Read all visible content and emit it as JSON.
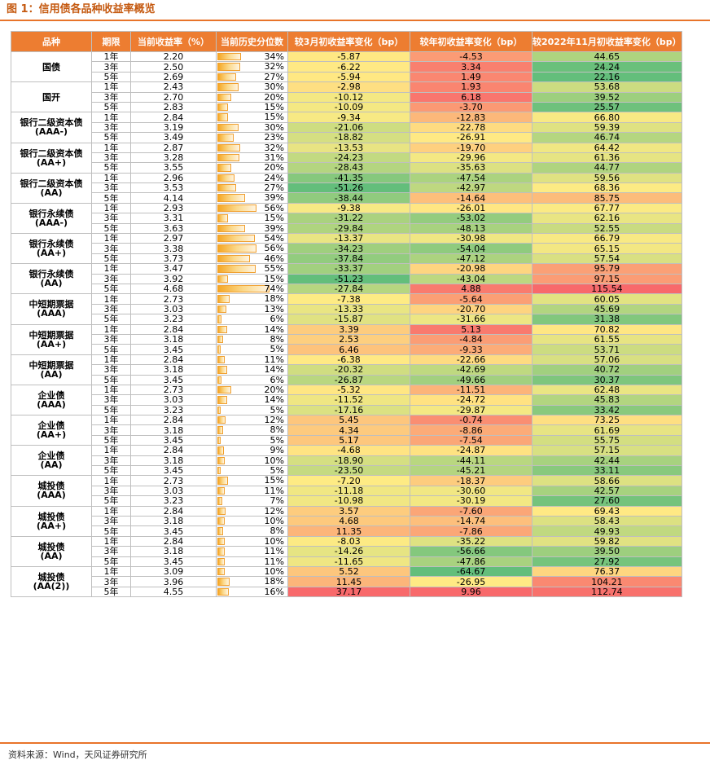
{
  "title": "图 1：信用债各品种收益率概览",
  "source": "资料来源：Wind，天风证券研究所",
  "chart_data": {
    "type": "table",
    "columns": [
      "品种",
      "期限",
      "当前收益率（%）",
      "当前历史分位数",
      "较3月初收益率变化（bp）",
      "较年初收益率变化（bp）",
      "较2022年11月初收益率变化（bp）"
    ],
    "periods": [
      "1年",
      "3年",
      "5年"
    ],
    "groups": [
      {
        "name": [
          "国债"
        ],
        "rows": [
          [
            "2.20",
            "34%",
            "-5.87",
            "-4.53",
            "44.65"
          ],
          [
            "2.50",
            "32%",
            "-6.22",
            "3.34",
            "24.24"
          ],
          [
            "2.69",
            "27%",
            "-5.94",
            "1.49",
            "22.16"
          ]
        ]
      },
      {
        "name": [
          "国开"
        ],
        "rows": [
          [
            "2.43",
            "30%",
            "-2.98",
            "1.93",
            "53.68"
          ],
          [
            "2.70",
            "20%",
            "-10.12",
            "6.18",
            "39.52"
          ],
          [
            "2.83",
            "15%",
            "-10.09",
            "-3.70",
            "25.57"
          ]
        ]
      },
      {
        "name": [
          "银行二级资本债",
          "(AAA-)"
        ],
        "rows": [
          [
            "2.84",
            "15%",
            "-9.34",
            "-12.83",
            "66.80"
          ],
          [
            "3.19",
            "30%",
            "-21.06",
            "-22.78",
            "59.39"
          ],
          [
            "3.49",
            "23%",
            "-18.82",
            "-26.91",
            "46.74"
          ]
        ]
      },
      {
        "name": [
          "银行二级资本债",
          "(AA+)"
        ],
        "rows": [
          [
            "2.87",
            "32%",
            "-13.53",
            "-19.70",
            "64.42"
          ],
          [
            "3.28",
            "31%",
            "-24.23",
            "-29.96",
            "61.36"
          ],
          [
            "3.55",
            "20%",
            "-28.43",
            "-35.63",
            "44.77"
          ]
        ]
      },
      {
        "name": [
          "银行二级资本债",
          "(AA)"
        ],
        "rows": [
          [
            "2.96",
            "24%",
            "-41.35",
            "-47.54",
            "59.56"
          ],
          [
            "3.53",
            "27%",
            "-51.26",
            "-42.97",
            "68.36"
          ],
          [
            "4.14",
            "39%",
            "-38.44",
            "-14.64",
            "85.75"
          ]
        ]
      },
      {
        "name": [
          "银行永续债",
          "(AAA-)"
        ],
        "rows": [
          [
            "2.93",
            "56%",
            "-9.38",
            "-26.01",
            "67.77"
          ],
          [
            "3.31",
            "15%",
            "-31.22",
            "-53.02",
            "62.16"
          ],
          [
            "3.63",
            "39%",
            "-29.84",
            "-48.13",
            "52.55"
          ]
        ]
      },
      {
        "name": [
          "银行永续债",
          "(AA+)"
        ],
        "rows": [
          [
            "2.97",
            "54%",
            "-13.37",
            "-30.98",
            "66.79"
          ],
          [
            "3.38",
            "56%",
            "-34.23",
            "-54.04",
            "65.15"
          ],
          [
            "3.73",
            "46%",
            "-37.84",
            "-47.12",
            "57.54"
          ]
        ]
      },
      {
        "name": [
          "银行永续债",
          "(AA)"
        ],
        "rows": [
          [
            "3.47",
            "55%",
            "-33.37",
            "-20.98",
            "95.79"
          ],
          [
            "3.92",
            "15%",
            "-51.23",
            "-43.04",
            "97.15"
          ],
          [
            "4.68",
            "74%",
            "-27.84",
            "4.88",
            "115.54"
          ]
        ]
      },
      {
        "name": [
          "中短期票据",
          "(AAA)"
        ],
        "rows": [
          [
            "2.73",
            "18%",
            "-7.38",
            "-5.64",
            "60.05"
          ],
          [
            "3.03",
            "13%",
            "-13.33",
            "-20.70",
            "45.69"
          ],
          [
            "3.23",
            "6%",
            "-15.87",
            "-31.66",
            "31.38"
          ]
        ]
      },
      {
        "name": [
          "中短期票据",
          "(AA+)"
        ],
        "rows": [
          [
            "2.84",
            "14%",
            "3.39",
            "5.13",
            "70.82"
          ],
          [
            "3.18",
            "8%",
            "2.53",
            "-4.84",
            "61.55"
          ],
          [
            "3.45",
            "5%",
            "6.46",
            "-9.33",
            "53.71"
          ]
        ]
      },
      {
        "name": [
          "中短期票据",
          "(AA)"
        ],
        "rows": [
          [
            "2.84",
            "11%",
            "-6.38",
            "-22.66",
            "57.06"
          ],
          [
            "3.18",
            "14%",
            "-20.32",
            "-42.69",
            "40.72"
          ],
          [
            "3.45",
            "6%",
            "-26.87",
            "-49.66",
            "30.37"
          ]
        ]
      },
      {
        "name": [
          "企业债",
          "(AAA)"
        ],
        "rows": [
          [
            "2.73",
            "20%",
            "-5.32",
            "-11.51",
            "62.48"
          ],
          [
            "3.03",
            "14%",
            "-11.52",
            "-24.72",
            "45.83"
          ],
          [
            "3.23",
            "5%",
            "-17.16",
            "-29.87",
            "33.42"
          ]
        ]
      },
      {
        "name": [
          "企业债",
          "(AA+)"
        ],
        "rows": [
          [
            "2.84",
            "12%",
            "5.45",
            "-0.74",
            "73.25"
          ],
          [
            "3.18",
            "8%",
            "4.34",
            "-8.86",
            "61.69"
          ],
          [
            "3.45",
            "5%",
            "5.17",
            "-7.54",
            "55.75"
          ]
        ]
      },
      {
        "name": [
          "企业债",
          "(AA)"
        ],
        "rows": [
          [
            "2.84",
            "9%",
            "-4.68",
            "-24.87",
            "57.15"
          ],
          [
            "3.18",
            "10%",
            "-18.90",
            "-44.11",
            "42.44"
          ],
          [
            "3.45",
            "5%",
            "-23.50",
            "-45.21",
            "33.11"
          ]
        ]
      },
      {
        "name": [
          "城投债",
          "(AAA)"
        ],
        "rows": [
          [
            "2.73",
            "15%",
            "-7.20",
            "-18.37",
            "58.66"
          ],
          [
            "3.03",
            "11%",
            "-11.18",
            "-30.60",
            "42.57"
          ],
          [
            "3.23",
            "7%",
            "-10.98",
            "-30.19",
            "27.60"
          ]
        ]
      },
      {
        "name": [
          "城投债",
          "(AA+)"
        ],
        "rows": [
          [
            "2.84",
            "12%",
            "3.57",
            "-7.60",
            "69.43"
          ],
          [
            "3.18",
            "10%",
            "4.68",
            "-14.74",
            "58.43"
          ],
          [
            "3.45",
            "8%",
            "11.35",
            "-7.86",
            "49.93"
          ]
        ]
      },
      {
        "name": [
          "城投债",
          "(AA)"
        ],
        "rows": [
          [
            "2.84",
            "10%",
            "-8.03",
            "-35.22",
            "59.82"
          ],
          [
            "3.18",
            "11%",
            "-14.26",
            "-56.66",
            "39.50"
          ],
          [
            "3.45",
            "11%",
            "-11.65",
            "-47.86",
            "27.92"
          ]
        ]
      },
      {
        "name": [
          "城投债",
          "(AA(2))"
        ],
        "rows": [
          [
            "3.09",
            "10%",
            "5.52",
            "-64.67",
            "76.37"
          ],
          [
            "3.96",
            "18%",
            "11.45",
            "-26.95",
            "104.21"
          ],
          [
            "4.55",
            "16%",
            "37.17",
            "9.96",
            "112.74"
          ]
        ]
      }
    ]
  }
}
